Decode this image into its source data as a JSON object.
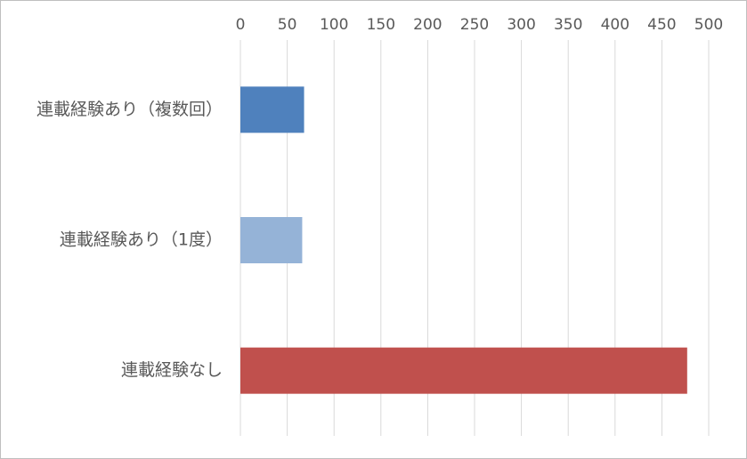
{
  "chart_data": {
    "type": "bar",
    "orientation": "horizontal",
    "categories": [
      "連載経験あり（複数回）",
      "連載経験あり（1度）",
      "連載経験なし"
    ],
    "values": [
      68,
      66,
      477
    ],
    "colors": [
      "#4f81bd",
      "#95b3d7",
      "#c0504d"
    ],
    "xlim": [
      0,
      500
    ],
    "xticks": [
      0,
      50,
      100,
      150,
      200,
      250,
      300,
      350,
      400,
      450,
      500
    ],
    "grid": true
  }
}
